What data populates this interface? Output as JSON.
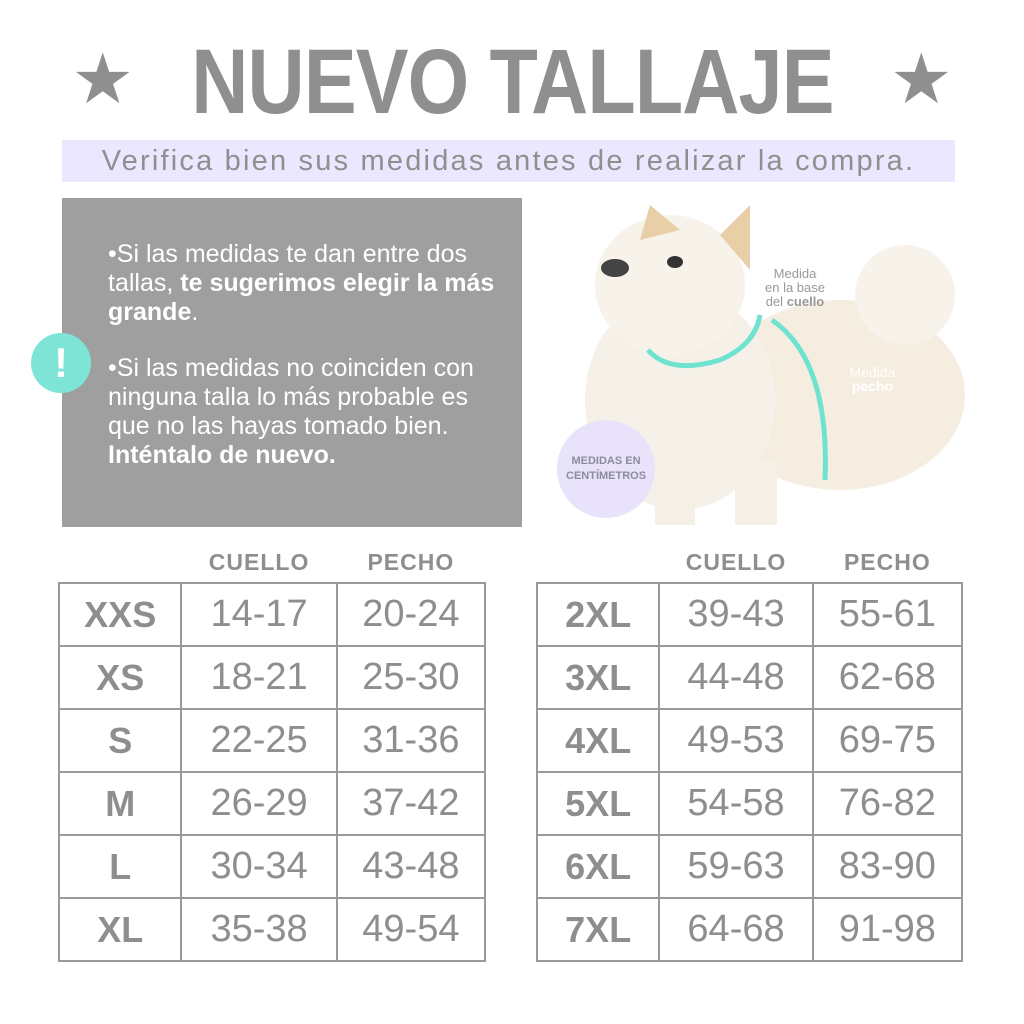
{
  "header": {
    "title": "NUEVO TALLAJE",
    "star_icon": "★",
    "subtitle": "Verifica bien sus medidas antes de realizar la compra."
  },
  "info": {
    "alert_icon": "!",
    "bullet1": {
      "pre": "Si las medidas te dan entre dos tallas, ",
      "bold": "te sugerimos elegir la más grande",
      "post": "."
    },
    "bullet2": {
      "pre": "Si las medidas no coinciden con ninguna talla lo más probable es que no las hayas tomado bien. ",
      "bold": "Inténtalo de nuevo.",
      "post": ""
    }
  },
  "diagram": {
    "neck_label": {
      "line1": "Medida",
      "line2": "en la base",
      "line3_pre": "del ",
      "line3_bold": "cuello"
    },
    "chest_label": {
      "line1": "Medida",
      "line2": "pecho"
    },
    "units_badge": "MEDIDAS EN CENTÍMETROS",
    "accent_color": "#6fe3d0",
    "badge_color": "#e8e3fb"
  },
  "tables": [
    {
      "headers": [
        "",
        "CUELLO",
        "PECHO"
      ],
      "rows": [
        [
          "XXS",
          "14-17",
          "20-24"
        ],
        [
          "XS",
          "18-21",
          "25-30"
        ],
        [
          "S",
          "22-25",
          "31-36"
        ],
        [
          "M",
          "26-29",
          "37-42"
        ],
        [
          "L",
          "30-34",
          "43-48"
        ],
        [
          "XL",
          "35-38",
          "49-54"
        ]
      ]
    },
    {
      "headers": [
        "",
        "CUELLO",
        "PECHO"
      ],
      "rows": [
        [
          "2XL",
          "39-43",
          "55-61"
        ],
        [
          "3XL",
          "44-48",
          "62-68"
        ],
        [
          "4XL",
          "49-53",
          "69-75"
        ],
        [
          "5XL",
          "54-58",
          "76-82"
        ],
        [
          "6XL",
          "59-63",
          "83-90"
        ],
        [
          "7XL",
          "64-68",
          "91-98"
        ]
      ]
    }
  ]
}
